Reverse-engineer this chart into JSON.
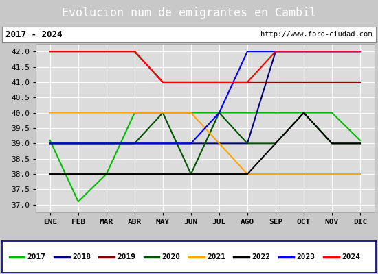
{
  "title": "Evolucion num de emigrantes en Cambil",
  "subtitle_left": "2017 - 2024",
  "subtitle_right": "http://www.foro-ciudad.com",
  "months": [
    "ENE",
    "FEB",
    "MAR",
    "ABR",
    "MAY",
    "JUN",
    "JUL",
    "AGO",
    "SEP",
    "OCT",
    "NOV",
    "DIC"
  ],
  "month_indices": [
    1,
    2,
    3,
    4,
    5,
    6,
    7,
    8,
    9,
    10,
    11,
    12
  ],
  "ylim": [
    36.75,
    42.25
  ],
  "yticks": [
    37.0,
    37.5,
    38.0,
    38.5,
    39.0,
    39.5,
    40.0,
    40.5,
    41.0,
    41.5,
    42.0
  ],
  "series": [
    {
      "year": "2017",
      "color": "#00bb00",
      "x": [
        1,
        2,
        3,
        4,
        5,
        6,
        7,
        8,
        9,
        10,
        11,
        12
      ],
      "y": [
        39.1,
        37.1,
        38.0,
        40.0,
        40.0,
        40.0,
        40.0,
        40.0,
        40.0,
        40.0,
        40.0,
        39.1
      ]
    },
    {
      "year": "2018",
      "color": "#000080",
      "x": [
        1,
        2,
        3,
        4,
        5,
        6,
        7,
        8,
        9,
        10,
        11,
        12
      ],
      "y": [
        39.0,
        39.0,
        39.0,
        39.0,
        39.0,
        39.0,
        39.0,
        39.0,
        42.0,
        42.0,
        42.0,
        42.0
      ]
    },
    {
      "year": "2019",
      "color": "#800000",
      "x": [
        1,
        2,
        3,
        4,
        5,
        6,
        7,
        8,
        9,
        10,
        11,
        12
      ],
      "y": [
        42.0,
        42.0,
        42.0,
        42.0,
        41.0,
        41.0,
        41.0,
        41.0,
        41.0,
        41.0,
        41.0,
        41.0
      ]
    },
    {
      "year": "2020",
      "color": "#005500",
      "x": [
        1,
        2,
        3,
        4,
        5,
        6,
        7,
        8,
        9,
        10,
        11,
        12
      ],
      "y": [
        39.0,
        39.0,
        39.0,
        39.0,
        40.0,
        38.0,
        40.0,
        39.0,
        39.0,
        40.0,
        39.0,
        39.0
      ]
    },
    {
      "year": "2021",
      "color": "#ffa500",
      "x": [
        1,
        2,
        3,
        4,
        5,
        6,
        7,
        8,
        9,
        10,
        11,
        12
      ],
      "y": [
        40.0,
        40.0,
        40.0,
        40.0,
        40.0,
        40.0,
        39.0,
        38.0,
        38.0,
        38.0,
        38.0,
        38.0
      ]
    },
    {
      "year": "2022",
      "color": "#000000",
      "x": [
        1,
        2,
        3,
        4,
        5,
        6,
        7,
        8,
        9,
        10,
        11,
        12
      ],
      "y": [
        38.0,
        38.0,
        38.0,
        38.0,
        38.0,
        38.0,
        38.0,
        38.0,
        39.0,
        40.0,
        39.0,
        39.0
      ]
    },
    {
      "year": "2023",
      "color": "#0000ff",
      "x": [
        1,
        2,
        3,
        4,
        5,
        6,
        7,
        8,
        9,
        10,
        11,
        12
      ],
      "y": [
        39.0,
        39.0,
        39.0,
        39.0,
        39.0,
        39.0,
        40.0,
        42.0,
        42.0,
        42.0,
        42.0,
        42.0
      ]
    },
    {
      "year": "2024",
      "color": "#ff0000",
      "x": [
        1,
        2,
        3,
        4,
        5,
        6,
        7,
        8,
        9,
        10,
        11,
        12
      ],
      "y": [
        42.0,
        42.0,
        42.0,
        42.0,
        41.0,
        41.0,
        41.0,
        41.0,
        42.0,
        42.0,
        42.0,
        42.0
      ]
    }
  ],
  "title_bg_color": "#4472c4",
  "title_text_color": "#ffffff",
  "plot_bg_color": "#dcdcdc",
  "grid_color": "#ffffff",
  "subtitle_box_color": "#ffffff",
  "legend_bg_color": "#ffffff",
  "legend_border_color": "#000080",
  "title_fontsize": 12,
  "tick_fontsize": 8,
  "legend_fontsize": 8
}
